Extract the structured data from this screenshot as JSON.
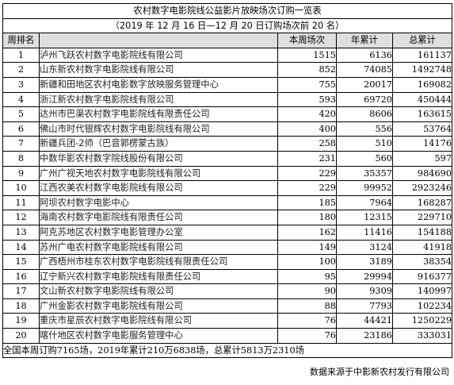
{
  "title": "农村数字电影院线公益影片放映场次订购一览表",
  "subtitle": "（2019 年 12 月 16 日—12 月 20 日订购场次前 20 名）",
  "headers": {
    "rank": "周排名",
    "name": "",
    "week": "本周场次",
    "year": "年累计",
    "total": "总累计"
  },
  "rows": [
    {
      "rank": "1",
      "name": "泸州飞跃农村数字电影院线有限公司",
      "week": "1515",
      "year": "6136",
      "total": "161137"
    },
    {
      "rank": "2",
      "name": "山东新农村数字电影院线有限公司",
      "week": "852",
      "year": "74085",
      "total": "1492748"
    },
    {
      "rank": "3",
      "name": "新疆和田地区农村电影数字放映服务管理中心",
      "week": "755",
      "year": "20017",
      "total": "169082"
    },
    {
      "rank": "4",
      "name": "浙江新农村数字电影院线有限公司",
      "week": "593",
      "year": "69720",
      "total": "450444"
    },
    {
      "rank": "5",
      "name": "达州市巴渠农村数字电影院线有限责任公司",
      "week": "420",
      "year": "8606",
      "total": "163615"
    },
    {
      "rank": "6",
      "name": "佛山市时代银辉农村数字电影院线有限公司",
      "week": "400",
      "year": "556",
      "total": "53764"
    },
    {
      "rank": "7",
      "name": "新疆兵团-2师（巴音郭楞蒙古族）",
      "week": "258",
      "year": "510",
      "total": "14176"
    },
    {
      "rank": "8",
      "name": "中数华影农村数字院线股份有限公司",
      "week": "231",
      "year": "560",
      "total": "597"
    },
    {
      "rank": "9",
      "name": "广州广视天地农村数字电影院线有限公司",
      "week": "229",
      "year": "35357",
      "total": "984690"
    },
    {
      "rank": "10",
      "name": "江西农美农村数字电影院线有限公司",
      "week": "229",
      "year": "99952",
      "total": "2923246"
    },
    {
      "rank": "11",
      "name": "阿坝农村数字电影中心",
      "week": "185",
      "year": "7964",
      "total": "168287"
    },
    {
      "rank": "12",
      "name": "海南农村数字电影院线有限责任公司",
      "week": "180",
      "year": "12315",
      "total": "229710"
    },
    {
      "rank": "13",
      "name": "阿克苏地区农村数字电影管理办公室",
      "week": "162",
      "year": "11416",
      "total": "154188"
    },
    {
      "rank": "14",
      "name": "苏州广电农村数字电影院线有限公司",
      "week": "149",
      "year": "3124",
      "total": "41918"
    },
    {
      "rank": "15",
      "name": "广西梧州市桂东农村数字电影院线有限责任公司",
      "week": "100",
      "year": "3189",
      "total": "38354"
    },
    {
      "rank": "16",
      "name": "辽宁新兴农村数字电影院线有限责任公司",
      "week": "95",
      "year": "29994",
      "total": "916377"
    },
    {
      "rank": "17",
      "name": "文山新农村数字电影院线有限公司",
      "week": "90",
      "year": "9309",
      "total": "140997"
    },
    {
      "rank": "18",
      "name": "广州金影农村数字电影院线有限公司",
      "week": "88",
      "year": "7793",
      "total": "102234"
    },
    {
      "rank": "19",
      "name": "重庆市星辰农村数字电影院线有限公司",
      "week": "76",
      "year": "44421",
      "total": "1250229"
    },
    {
      "rank": "20",
      "name": "喀什地区农村数字电影服务管理中心",
      "week": "76",
      "year": "23186",
      "total": "333031"
    }
  ],
  "footnote": "全国本周订购7165场，2019年累计210万6838场，总累计5813万2310场",
  "source": "数据来源于中影新农村发行有限公司"
}
